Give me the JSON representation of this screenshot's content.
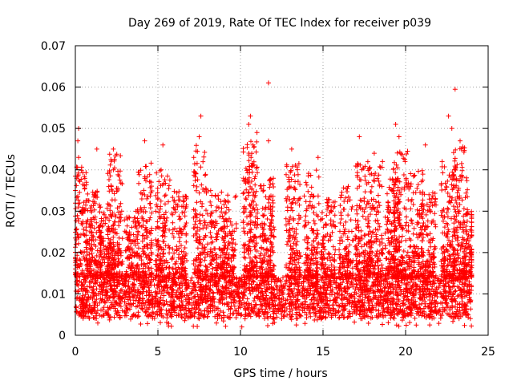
{
  "chart_data": {
    "type": "scatter",
    "title": "Day 269 of 2019, Rate Of TEC Index for receiver p039",
    "xlabel": "GPS time / hours",
    "ylabel": "ROTI / TECUs",
    "xlim": [
      0,
      25
    ],
    "ylim": [
      0,
      0.07
    ],
    "x_ticks": [
      0,
      5,
      10,
      15,
      20,
      25
    ],
    "x_tick_labels": [
      "0",
      "5",
      "10",
      "15",
      "20",
      "25"
    ],
    "y_ticks": [
      0,
      0.01,
      0.02,
      0.03,
      0.04,
      0.05,
      0.06,
      0.07
    ],
    "y_tick_labels": [
      "0",
      "0.01",
      "0.02",
      "0.03",
      "0.04",
      "0.05",
      "0.06",
      "0.07"
    ],
    "grid": true,
    "marker": "+",
    "color": "#ff0000",
    "data_range_x": [
      0,
      24
    ],
    "baseline_band": [
      0.004,
      0.014
    ],
    "peak_points": [
      {
        "x": 0.2,
        "y": 0.05
      },
      {
        "x": 0.15,
        "y": 0.047
      },
      {
        "x": 0.2,
        "y": 0.043
      },
      {
        "x": 1.3,
        "y": 0.045
      },
      {
        "x": 2.3,
        "y": 0.045
      },
      {
        "x": 4.2,
        "y": 0.047
      },
      {
        "x": 5.3,
        "y": 0.046
      },
      {
        "x": 7.6,
        "y": 0.053
      },
      {
        "x": 7.5,
        "y": 0.048
      },
      {
        "x": 10.6,
        "y": 0.053
      },
      {
        "x": 10.5,
        "y": 0.051
      },
      {
        "x": 11.0,
        "y": 0.049
      },
      {
        "x": 11.7,
        "y": 0.061
      },
      {
        "x": 11.7,
        "y": 0.047
      },
      {
        "x": 13.1,
        "y": 0.045
      },
      {
        "x": 14.7,
        "y": 0.043
      },
      {
        "x": 17.2,
        "y": 0.048
      },
      {
        "x": 18.1,
        "y": 0.044
      },
      {
        "x": 18.6,
        "y": 0.042
      },
      {
        "x": 19.4,
        "y": 0.051
      },
      {
        "x": 19.6,
        "y": 0.048
      },
      {
        "x": 21.2,
        "y": 0.046
      },
      {
        "x": 22.6,
        "y": 0.053
      },
      {
        "x": 22.8,
        "y": 0.05
      },
      {
        "x": 23.0,
        "y": 0.0595
      },
      {
        "x": 23.3,
        "y": 0.047
      }
    ],
    "activity_bursts": [
      {
        "center": 0.3,
        "max": 0.042,
        "n": 140
      },
      {
        "center": 1.1,
        "max": 0.035,
        "n": 160
      },
      {
        "center": 1.9,
        "max": 0.032,
        "n": 120
      },
      {
        "center": 2.4,
        "max": 0.044,
        "n": 160
      },
      {
        "center": 3.4,
        "max": 0.03,
        "n": 120
      },
      {
        "center": 4.2,
        "max": 0.042,
        "n": 140
      },
      {
        "center": 5.3,
        "max": 0.04,
        "n": 150
      },
      {
        "center": 6.3,
        "max": 0.035,
        "n": 130
      },
      {
        "center": 7.6,
        "max": 0.046,
        "n": 150
      },
      {
        "center": 8.6,
        "max": 0.035,
        "n": 130
      },
      {
        "center": 9.3,
        "max": 0.034,
        "n": 120
      },
      {
        "center": 10.6,
        "max": 0.048,
        "n": 220
      },
      {
        "center": 11.6,
        "max": 0.038,
        "n": 180
      },
      {
        "center": 13.2,
        "max": 0.042,
        "n": 160
      },
      {
        "center": 14.3,
        "max": 0.04,
        "n": 150
      },
      {
        "center": 15.3,
        "max": 0.033,
        "n": 120
      },
      {
        "center": 16.4,
        "max": 0.036,
        "n": 130
      },
      {
        "center": 17.4,
        "max": 0.042,
        "n": 150
      },
      {
        "center": 18.2,
        "max": 0.041,
        "n": 150
      },
      {
        "center": 19.2,
        "max": 0.038,
        "n": 160
      },
      {
        "center": 19.7,
        "max": 0.045,
        "n": 160
      },
      {
        "center": 20.6,
        "max": 0.04,
        "n": 140
      },
      {
        "center": 21.4,
        "max": 0.035,
        "n": 130
      },
      {
        "center": 22.6,
        "max": 0.043,
        "n": 160
      },
      {
        "center": 23.3,
        "max": 0.046,
        "n": 160
      },
      {
        "center": 23.8,
        "max": 0.03,
        "n": 100
      }
    ]
  }
}
